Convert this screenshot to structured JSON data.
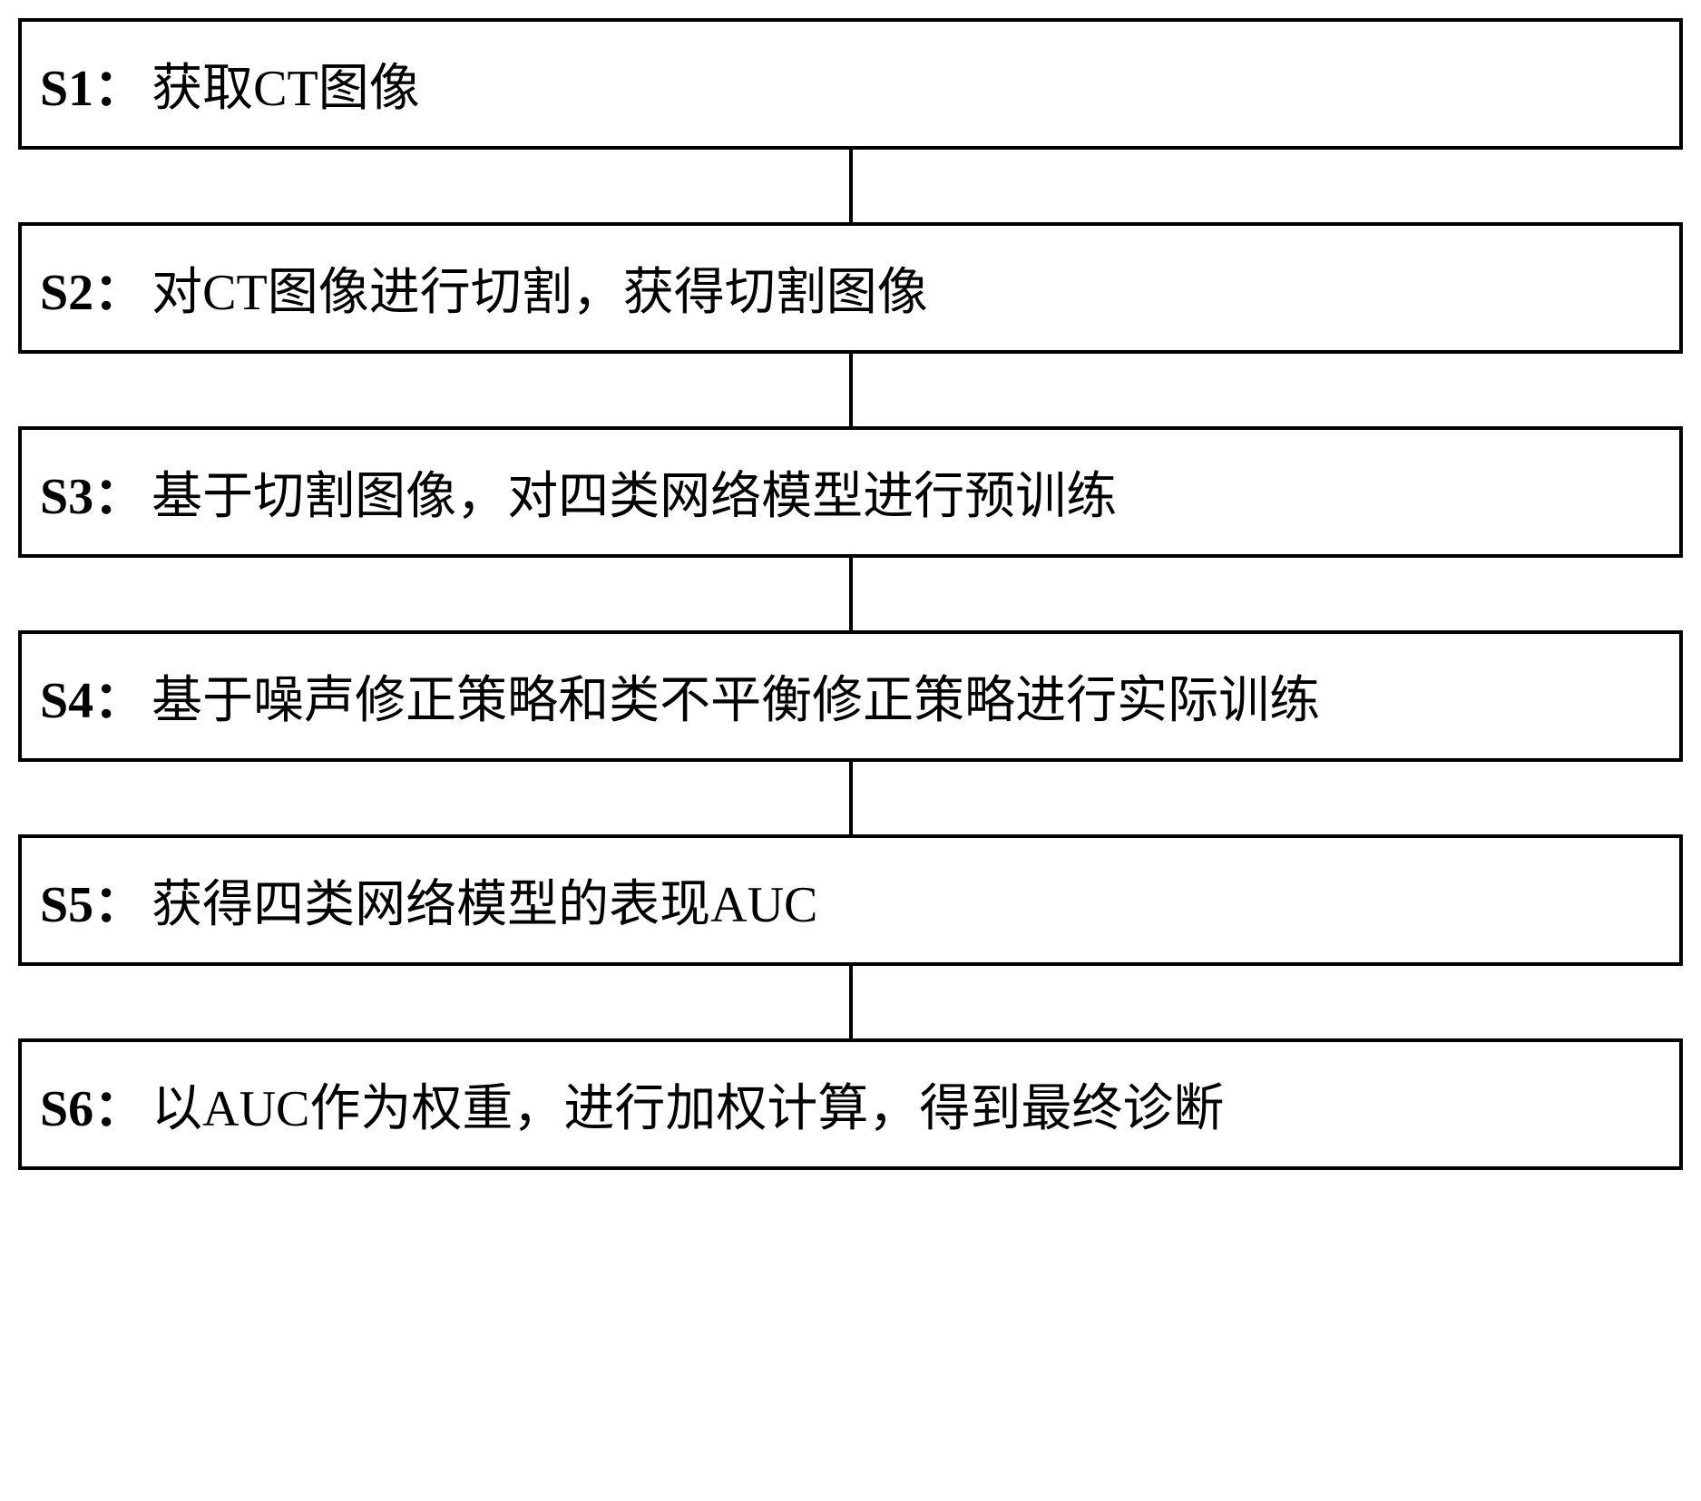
{
  "flowchart": {
    "type": "flowchart",
    "background_color": "#ffffff",
    "box_border_color": "#000000",
    "box_border_width": 4,
    "box_background": "#ffffff",
    "text_color": "#000000",
    "label_fontsize": 56,
    "text_fontsize": 56,
    "label_font_weight": "bold",
    "connector_color": "#000000",
    "connector_width": 4,
    "connector_height": 80,
    "steps": [
      {
        "label": "S1：",
        "text": "获取CT图像"
      },
      {
        "label": "S2：",
        "text": "对CT图像进行切割，获得切割图像"
      },
      {
        "label": "S3：",
        "text": "基于切割图像，对四类网络模型进行预训练"
      },
      {
        "label": "S4：",
        "text": "基于噪声修正策略和类不平衡修正策略进行实际训练"
      },
      {
        "label": "S5：",
        "text": "获得四类网络模型的表现AUC"
      },
      {
        "label": "S6：",
        "text": "以AUC作为权重，进行加权计算，得到最终诊断"
      }
    ]
  }
}
